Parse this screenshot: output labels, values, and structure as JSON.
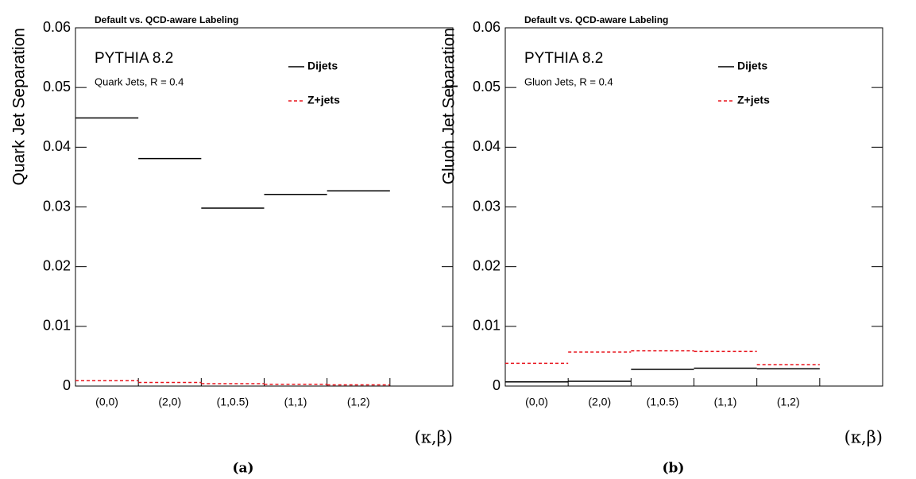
{
  "chart_data": [
    {
      "type": "step",
      "title": "Default vs. QCD-aware Labeling",
      "ylabel": "Quark Jet Separation",
      "xlabel": "(κ,β)",
      "annotations": [
        "PYTHIA 8.2",
        "Quark Jets, R = 0.4"
      ],
      "caption": "(a)",
      "categories": [
        "(0,0)",
        "(2,0)",
        "(1,0.5)",
        "(1,1)",
        "(1,2)",
        null
      ],
      "series": [
        {
          "name": "Dijets",
          "color": "#000000",
          "dashed": false,
          "values": [
            0.0449,
            0.0381,
            0.0298,
            0.0321,
            0.0327,
            null
          ]
        },
        {
          "name": "Z+jets",
          "color": "#e8141c",
          "dashed": true,
          "values": [
            0.0009,
            0.0006,
            0.0004,
            0.0003,
            0.0002,
            null
          ]
        }
      ],
      "ylim": [
        0,
        0.06
      ],
      "yticks": [
        0,
        0.01,
        0.02,
        0.03,
        0.04,
        0.05,
        0.06
      ]
    },
    {
      "type": "step",
      "title": "Default vs. QCD-aware Labeling",
      "ylabel": "Gluon Jet Separation",
      "xlabel": "(κ,β)",
      "annotations": [
        "PYTHIA 8.2",
        "Gluon Jets, R = 0.4"
      ],
      "caption": "(b)",
      "categories": [
        "(0,0)",
        "(2,0)",
        "(1,0.5)",
        "(1,1)",
        "(1,2)",
        null
      ],
      "series": [
        {
          "name": "Dijets",
          "color": "#000000",
          "dashed": false,
          "values": [
            0.0007,
            0.0008,
            0.0028,
            0.003,
            0.0029,
            null
          ]
        },
        {
          "name": "Z+jets",
          "color": "#e8141c",
          "dashed": true,
          "values": [
            0.0038,
            0.0057,
            0.0059,
            0.0058,
            0.0036,
            null
          ]
        }
      ],
      "ylim": [
        0,
        0.06
      ],
      "yticks": [
        0,
        0.01,
        0.02,
        0.03,
        0.04,
        0.05,
        0.06
      ]
    }
  ]
}
